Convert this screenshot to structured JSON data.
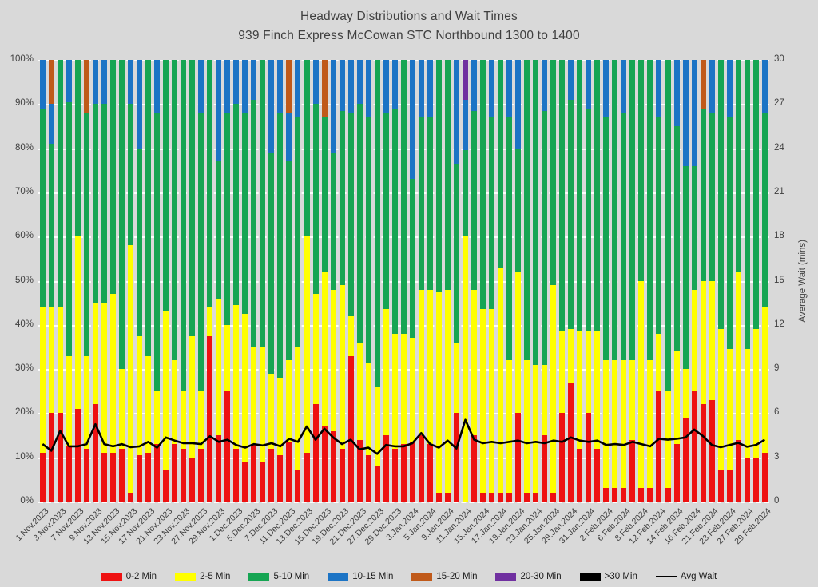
{
  "title": {
    "line1": "Headway Distributions and Wait Times",
    "line2": "939 Finch Express  McCowan STC Northbound 1300 to 1400"
  },
  "colors": {
    "background": "#d9d9d9",
    "gridline": "#ffffff",
    "text": "#404040",
    "avg_wait_line": "#000000"
  },
  "chart_data": {
    "type": "bar",
    "subtype": "stacked-100pct-with-line-overlay",
    "grid": "horizontal-dashed-white",
    "legend_position": "bottom-center",
    "left_axis": {
      "min": 0,
      "max": 100,
      "ticks": [
        "0%",
        "10%",
        "20%",
        "30%",
        "40%",
        "50%",
        "60%",
        "70%",
        "80%",
        "90%",
        "100%"
      ]
    },
    "right_axis": {
      "label": "Average Wait (mins)",
      "min": 0,
      "max": 30,
      "ticks": [
        "0",
        "3",
        "6",
        "9",
        "12",
        "15",
        "18",
        "21",
        "24",
        "27",
        "30"
      ]
    },
    "segment_order": [
      "0-2 Min",
      "2-5 Min",
      "5-10 Min",
      "10-15 Min",
      "15-20 Min",
      "20-30 Min"
    ],
    "segment_colors": [
      "#EE1111",
      "#FFFF00",
      "#16A553",
      "#1C74C5",
      "#C05A1A",
      "#7030A0"
    ],
    "legend": [
      {
        "label": "0-2 Min",
        "color": "#EE1111",
        "type": "box"
      },
      {
        "label": "2-5 Min",
        "color": "#FFFF00",
        "type": "box"
      },
      {
        "label": "5-10 Min",
        "color": "#16A553",
        "type": "box"
      },
      {
        "label": "10-15 Min",
        "color": "#1C74C5",
        "type": "box"
      },
      {
        "label": "15-20 Min",
        "color": "#C05A1A",
        "type": "box"
      },
      {
        "label": "20-30 Min",
        "color": "#7030A0",
        "type": "box"
      },
      {
        "label": ">30 Min",
        "color": "#000000",
        "type": "box"
      },
      {
        "label": "Avg Wait",
        "color": "#000000",
        "type": "line"
      }
    ],
    "bars": [
      {
        "date": "1.Nov.2023",
        "seg": [
          11,
          33,
          45,
          11,
          0,
          0
        ],
        "wait_pct": 13
      },
      {
        "date": "",
        "seg": [
          20,
          24,
          37,
          9,
          10,
          0
        ],
        "wait_pct": 11.5
      },
      {
        "date": "3.Nov.2023",
        "seg": [
          20,
          24,
          56,
          0,
          0,
          0
        ],
        "wait_pct": 16
      },
      {
        "date": "",
        "seg": [
          12.5,
          20.5,
          57.5,
          9.5,
          0,
          0
        ],
        "wait_pct": 12.5
      },
      {
        "date": "7.Nov.2023",
        "seg": [
          21,
          39,
          40,
          0,
          0,
          0
        ],
        "wait_pct": 12.5
      },
      {
        "date": "",
        "seg": [
          12,
          21,
          55,
          0,
          12,
          0
        ],
        "wait_pct": 13
      },
      {
        "date": "9.Nov.2023",
        "seg": [
          22,
          23,
          45,
          10,
          0,
          0
        ],
        "wait_pct": 17.5
      },
      {
        "date": "",
        "seg": [
          11,
          34,
          45,
          10,
          0,
          0
        ],
        "wait_pct": 13
      },
      {
        "date": "13.Nov.2023",
        "seg": [
          11,
          36,
          53,
          0,
          0,
          0
        ],
        "wait_pct": 12.5
      },
      {
        "date": "",
        "seg": [
          12,
          18,
          70,
          0,
          0,
          0
        ],
        "wait_pct": 13
      },
      {
        "date": "15.Nov.2023",
        "seg": [
          2,
          56,
          32,
          10,
          0,
          0
        ],
        "wait_pct": 12.3
      },
      {
        "date": "",
        "seg": [
          10.5,
          27,
          42.5,
          20,
          0,
          0
        ],
        "wait_pct": 12.5
      },
      {
        "date": "17.Nov.2023",
        "seg": [
          11,
          22,
          67,
          0,
          0,
          0
        ],
        "wait_pct": 13.5
      },
      {
        "date": "",
        "seg": [
          13,
          12,
          63,
          12,
          0,
          0
        ],
        "wait_pct": 12.2
      },
      {
        "date": "21.Nov.2023",
        "seg": [
          7,
          36,
          57,
          0,
          0,
          0
        ],
        "wait_pct": 14.5
      },
      {
        "date": "",
        "seg": [
          13,
          19,
          68,
          0,
          0,
          0
        ],
        "wait_pct": 13.8
      },
      {
        "date": "23.Nov.2023",
        "seg": [
          12,
          13,
          75,
          0,
          0,
          0
        ],
        "wait_pct": 13.2
      },
      {
        "date": "",
        "seg": [
          10,
          27.5,
          62.5,
          0,
          0,
          0
        ],
        "wait_pct": 13.2
      },
      {
        "date": "27.Nov.2023",
        "seg": [
          12,
          13,
          63,
          12,
          0,
          0
        ],
        "wait_pct": 13
      },
      {
        "date": "",
        "seg": [
          37.5,
          6.5,
          56,
          0,
          0,
          0
        ],
        "wait_pct": 14.8
      },
      {
        "date": "29.Nov.2023",
        "seg": [
          15,
          31,
          31,
          23,
          0,
          0
        ],
        "wait_pct": 13.5
      },
      {
        "date": "",
        "seg": [
          25,
          15,
          48,
          12,
          0,
          0
        ],
        "wait_pct": 14
      },
      {
        "date": "1.Dec.2023",
        "seg": [
          12,
          32.5,
          45.5,
          10,
          0,
          0
        ],
        "wait_pct": 12.8
      },
      {
        "date": "",
        "seg": [
          9,
          33.5,
          45.5,
          12,
          0,
          0
        ],
        "wait_pct": 12.2
      },
      {
        "date": "5.Dec.2023",
        "seg": [
          13,
          22,
          56,
          9,
          0,
          0
        ],
        "wait_pct": 13
      },
      {
        "date": "",
        "seg": [
          9,
          26,
          65,
          0,
          0,
          0
        ],
        "wait_pct": 12.7
      },
      {
        "date": "7.Dec.2023",
        "seg": [
          12,
          17,
          50,
          21,
          0,
          0
        ],
        "wait_pct": 13.2
      },
      {
        "date": "",
        "seg": [
          10.5,
          17.5,
          60,
          12,
          0,
          0
        ],
        "wait_pct": 12.5
      },
      {
        "date": "11.Dec.2023",
        "seg": [
          13.5,
          18.5,
          45,
          11,
          12,
          0
        ],
        "wait_pct": 14.2
      },
      {
        "date": "",
        "seg": [
          7,
          28,
          52,
          13,
          0,
          0
        ],
        "wait_pct": 13.5
      },
      {
        "date": "13.Dec.2023",
        "seg": [
          11,
          49,
          40,
          0,
          0,
          0
        ],
        "wait_pct": 17
      },
      {
        "date": "",
        "seg": [
          22,
          25,
          43,
          10,
          0,
          0
        ],
        "wait_pct": 14
      },
      {
        "date": "15.Dec.2023",
        "seg": [
          17,
          35,
          35,
          0,
          13,
          0
        ],
        "wait_pct": 16.5
      },
      {
        "date": "",
        "seg": [
          16,
          32,
          31,
          21,
          0,
          0
        ],
        "wait_pct": 14.5
      },
      {
        "date": "19.Dec.2023",
        "seg": [
          12,
          37,
          39.5,
          11.5,
          0,
          0
        ],
        "wait_pct": 13
      },
      {
        "date": "",
        "seg": [
          33,
          9,
          46,
          12,
          0,
          0
        ],
        "wait_pct": 14
      },
      {
        "date": "21.Dec.2023",
        "seg": [
          14,
          22,
          54,
          10,
          0,
          0
        ],
        "wait_pct": 11.8
      },
      {
        "date": "",
        "seg": [
          10.5,
          21,
          55.5,
          13,
          0,
          0
        ],
        "wait_pct": 12.2
      },
      {
        "date": "27.Dec.2023",
        "seg": [
          8,
          18,
          74,
          0,
          0,
          0
        ],
        "wait_pct": 10.8
      },
      {
        "date": "",
        "seg": [
          15,
          28.5,
          44.5,
          12,
          0,
          0
        ],
        "wait_pct": 12.8
      },
      {
        "date": "29.Dec.2023",
        "seg": [
          12,
          26,
          51,
          11,
          0,
          0
        ],
        "wait_pct": 12.5
      },
      {
        "date": "",
        "seg": [
          13,
          25,
          62,
          0,
          0,
          0
        ],
        "wait_pct": 12.5
      },
      {
        "date": "3.Jan.2024",
        "seg": [
          13.5,
          23.5,
          36,
          27,
          0,
          0
        ],
        "wait_pct": 13.2
      },
      {
        "date": "",
        "seg": [
          15,
          33,
          39,
          13,
          0,
          0
        ],
        "wait_pct": 15.5
      },
      {
        "date": "5.Jan.2024",
        "seg": [
          13,
          35,
          39,
          13,
          0,
          0
        ],
        "wait_pct": 13
      },
      {
        "date": "",
        "seg": [
          2,
          45.5,
          52.5,
          0,
          0,
          0
        ],
        "wait_pct": 12.2
      },
      {
        "date": "9.Jan.2024",
        "seg": [
          2,
          46,
          52,
          0,
          0,
          0
        ],
        "wait_pct": 13.8
      },
      {
        "date": "",
        "seg": [
          20,
          16,
          40.5,
          23.5,
          0,
          0
        ],
        "wait_pct": 12
      },
      {
        "date": "11.Jan.2024",
        "seg": [
          0,
          60,
          19.5,
          11.5,
          0,
          9
        ],
        "wait_pct": 18.5
      },
      {
        "date": "",
        "seg": [
          15,
          33,
          40.5,
          11.5,
          0,
          0
        ],
        "wait_pct": 14
      },
      {
        "date": "15.Jan.2024",
        "seg": [
          2,
          41.5,
          56.5,
          0,
          0,
          0
        ],
        "wait_pct": 13.2
      },
      {
        "date": "",
        "seg": [
          2,
          41.5,
          43.5,
          13,
          0,
          0
        ],
        "wait_pct": 13.5
      },
      {
        "date": "17.Jan.2024",
        "seg": [
          2,
          51,
          47,
          0,
          0,
          0
        ],
        "wait_pct": 13.2
      },
      {
        "date": "",
        "seg": [
          2,
          30,
          55,
          13,
          0,
          0
        ],
        "wait_pct": 13.5
      },
      {
        "date": "19.Jan.2024",
        "seg": [
          20,
          32,
          28,
          20,
          0,
          0
        ],
        "wait_pct": 13.8
      },
      {
        "date": "",
        "seg": [
          2,
          30,
          68,
          0,
          0,
          0
        ],
        "wait_pct": 13.2
      },
      {
        "date": "23.Jan.2024",
        "seg": [
          2,
          29,
          69,
          0,
          0,
          0
        ],
        "wait_pct": 13.5
      },
      {
        "date": "",
        "seg": [
          15,
          16,
          57.5,
          11.5,
          0,
          0
        ],
        "wait_pct": 13.2
      },
      {
        "date": "25.Jan.2024",
        "seg": [
          2,
          47,
          51,
          0,
          0,
          0
        ],
        "wait_pct": 13.8
      },
      {
        "date": "",
        "seg": [
          20,
          18.5,
          61.5,
          0,
          0,
          0
        ],
        "wait_pct": 13.5
      },
      {
        "date": "29.Jan.2024",
        "seg": [
          27,
          12,
          52,
          9,
          0,
          0
        ],
        "wait_pct": 14.5
      },
      {
        "date": "",
        "seg": [
          12,
          26.5,
          61.5,
          0,
          0,
          0
        ],
        "wait_pct": 13.8
      },
      {
        "date": "31.Jan.2024",
        "seg": [
          20,
          18.5,
          50.5,
          11,
          0,
          0
        ],
        "wait_pct": 13.5
      },
      {
        "date": "",
        "seg": [
          12,
          26.5,
          61.5,
          0,
          0,
          0
        ],
        "wait_pct": 13.8
      },
      {
        "date": "2.Feb.2024",
        "seg": [
          3,
          29,
          55,
          13,
          0,
          0
        ],
        "wait_pct": 12.8
      },
      {
        "date": "",
        "seg": [
          3,
          29,
          68,
          0,
          0,
          0
        ],
        "wait_pct": 13
      },
      {
        "date": "6.Feb.2024",
        "seg": [
          3,
          29,
          56,
          12,
          0,
          0
        ],
        "wait_pct": 12.8
      },
      {
        "date": "",
        "seg": [
          14,
          18,
          68,
          0,
          0,
          0
        ],
        "wait_pct": 13.5
      },
      {
        "date": "8.Feb.2024",
        "seg": [
          3,
          47,
          50,
          0,
          0,
          0
        ],
        "wait_pct": 13
      },
      {
        "date": "",
        "seg": [
          3,
          29,
          68,
          0,
          0,
          0
        ],
        "wait_pct": 12.5
      },
      {
        "date": "12.Feb.2024",
        "seg": [
          25,
          13,
          49,
          13,
          0,
          0
        ],
        "wait_pct": 14.2
      },
      {
        "date": "",
        "seg": [
          3,
          22,
          75,
          0,
          0,
          0
        ],
        "wait_pct": 14
      },
      {
        "date": "14.Feb.2024",
        "seg": [
          13,
          21,
          51,
          15,
          0,
          0
        ],
        "wait_pct": 14.2
      },
      {
        "date": "",
        "seg": [
          19,
          11,
          46,
          24,
          0,
          0
        ],
        "wait_pct": 14.5
      },
      {
        "date": "16.Feb.2024",
        "seg": [
          25,
          23,
          28,
          24,
          0,
          0
        ],
        "wait_pct": 16.3
      },
      {
        "date": "",
        "seg": [
          22,
          28,
          39,
          0,
          11,
          0
        ],
        "wait_pct": 14.8
      },
      {
        "date": "21.Feb.2024",
        "seg": [
          23,
          27,
          38,
          12,
          0,
          0
        ],
        "wait_pct": 12.8
      },
      {
        "date": "",
        "seg": [
          7,
          32,
          61,
          0,
          0,
          0
        ],
        "wait_pct": 12.3
      },
      {
        "date": "23.Feb.2024",
        "seg": [
          7,
          27.5,
          52.5,
          13,
          0,
          0
        ],
        "wait_pct": 12.8
      },
      {
        "date": "",
        "seg": [
          14,
          38,
          48,
          0,
          0,
          0
        ],
        "wait_pct": 13.3
      },
      {
        "date": "27.Feb.2024",
        "seg": [
          10,
          24.5,
          65.5,
          0,
          0,
          0
        ],
        "wait_pct": 12.4
      },
      {
        "date": "",
        "seg": [
          10,
          29,
          61,
          0,
          0,
          0
        ],
        "wait_pct": 12.8
      },
      {
        "date": "29.Feb.2024",
        "seg": [
          11,
          33,
          44,
          12,
          0,
          0
        ],
        "wait_pct": 14
      }
    ]
  }
}
